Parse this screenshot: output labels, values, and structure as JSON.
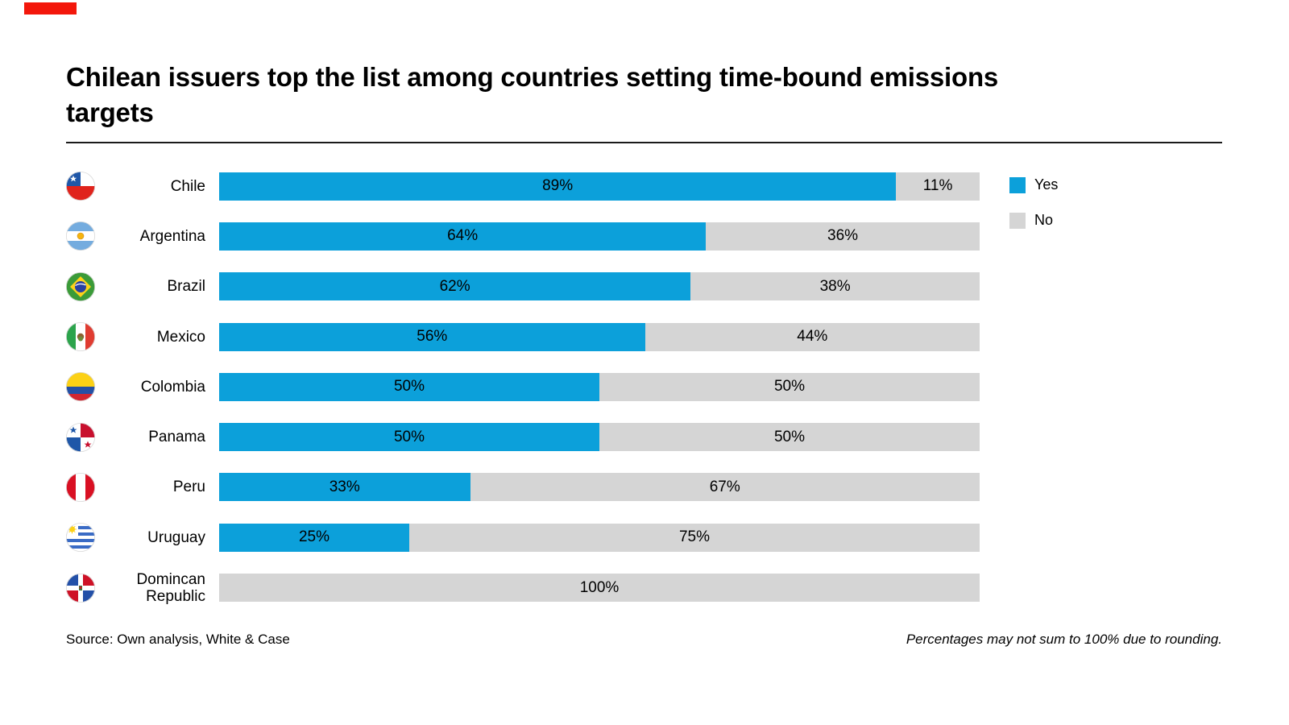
{
  "brand": {
    "accent_color": "#f3170b"
  },
  "title": "Chilean issuers top the list among countries setting time-bound emissions targets",
  "legend": {
    "items": [
      {
        "label": "Yes",
        "color": "#0ca0da"
      },
      {
        "label": "No",
        "color": "#d5d5d5"
      }
    ]
  },
  "footer": {
    "source": "Source: Own analysis, White & Case",
    "note": "Percentages may not sum to 100% due to rounding."
  },
  "chart_data": {
    "type": "bar",
    "stacked": true,
    "orientation": "horizontal",
    "title": "Chilean issuers top the list among countries setting time-bound emissions targets",
    "categories": [
      "Chile",
      "Argentina",
      "Brazil",
      "Mexico",
      "Colombia",
      "Panama",
      "Peru",
      "Uruguay",
      "Domincan Republic"
    ],
    "series": [
      {
        "name": "Yes",
        "color": "#0ca0da",
        "values": [
          89,
          64,
          62,
          56,
          50,
          50,
          33,
          25,
          0
        ]
      },
      {
        "name": "No",
        "color": "#d5d5d5",
        "values": [
          11,
          36,
          38,
          44,
          50,
          50,
          67,
          75,
          100
        ]
      }
    ],
    "value_suffix": "%",
    "xlim": [
      0,
      100
    ],
    "grid": false,
    "legend_position": "right"
  },
  "rows": [
    {
      "country": "Chile",
      "flag": "chile-flag",
      "yes": 89,
      "no": 11,
      "yes_label": "89%",
      "no_label": "11%"
    },
    {
      "country": "Argentina",
      "flag": "argentina-flag",
      "yes": 64,
      "no": 36,
      "yes_label": "64%",
      "no_label": "36%"
    },
    {
      "country": "Brazil",
      "flag": "brazil-flag",
      "yes": 62,
      "no": 38,
      "yes_label": "62%",
      "no_label": "38%"
    },
    {
      "country": "Mexico",
      "flag": "mexico-flag",
      "yes": 56,
      "no": 44,
      "yes_label": "56%",
      "no_label": "44%"
    },
    {
      "country": "Colombia",
      "flag": "colombia-flag",
      "yes": 50,
      "no": 50,
      "yes_label": "50%",
      "no_label": "50%"
    },
    {
      "country": "Panama",
      "flag": "panama-flag",
      "yes": 50,
      "no": 50,
      "yes_label": "50%",
      "no_label": "50%"
    },
    {
      "country": "Peru",
      "flag": "peru-flag",
      "yes": 33,
      "no": 67,
      "yes_label": "33%",
      "no_label": "67%"
    },
    {
      "country": "Uruguay",
      "flag": "uruguay-flag",
      "yes": 25,
      "no": 75,
      "yes_label": "25%",
      "no_label": "75%"
    },
    {
      "country": "Domincan Republic",
      "flag": "dominican-republic-flag",
      "yes": 0,
      "no": 100,
      "yes_label": "",
      "no_label": "100%"
    }
  ]
}
